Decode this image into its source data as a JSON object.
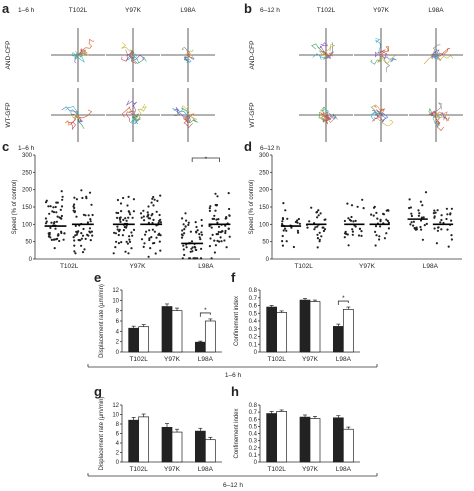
{
  "panels": {
    "a": {
      "letter": "a",
      "time": "1–6 h",
      "cols": [
        "T102L",
        "Y97K",
        "L98A"
      ],
      "rows": [
        "AND-CFP",
        "WT-GFP"
      ]
    },
    "b": {
      "letter": "b",
      "time": "6–12 h",
      "cols": [
        "T102L",
        "Y97K",
        "L98A"
      ],
      "rows": [
        "AND-CFP",
        "WT-GFP"
      ]
    },
    "c": {
      "letter": "c",
      "time": "1–6 h"
    },
    "d": {
      "letter": "d",
      "time": "6–12 h"
    },
    "e": {
      "letter": "e"
    },
    "f": {
      "letter": "f"
    },
    "g": {
      "letter": "g"
    },
    "h": {
      "letter": "h"
    },
    "group1": "1–6 h",
    "group2": "6–12 h"
  },
  "colors": {
    "black_bar": "#222222",
    "white_bar": "#ffffff",
    "axis": "#333333"
  },
  "chart_data": [
    {
      "panel": "c",
      "type": "scatter",
      "ylabel": "Speed (% of control)",
      "ylim": [
        0,
        300
      ],
      "yticks": [
        0,
        50,
        100,
        150,
        200,
        250,
        300
      ],
      "categories": [
        "T102L",
        "Y97K",
        "L98A"
      ],
      "series": [
        {
          "group": "T102L",
          "subset": 1,
          "median": 95
        },
        {
          "group": "T102L",
          "subset": 2,
          "median": 100
        },
        {
          "group": "Y97K",
          "subset": 1,
          "median": 100
        },
        {
          "group": "Y97K",
          "subset": 2,
          "median": 100
        },
        {
          "group": "L98A",
          "subset": 1,
          "median": 45
        },
        {
          "group": "L98A",
          "subset": 2,
          "median": 100
        }
      ],
      "annotations": [
        "*"
      ]
    },
    {
      "panel": "d",
      "type": "scatter",
      "ylabel": "Speed (% of control)",
      "ylim": [
        0,
        300
      ],
      "yticks": [
        0,
        50,
        100,
        150,
        200,
        250,
        300
      ],
      "categories": [
        "T102L",
        "Y97K",
        "L98A"
      ],
      "series": [
        {
          "group": "T102L",
          "subset": 1,
          "median": 95
        },
        {
          "group": "T102L",
          "subset": 2,
          "median": 100
        },
        {
          "group": "Y97K",
          "subset": 1,
          "median": 100
        },
        {
          "group": "Y97K",
          "subset": 2,
          "median": 100
        },
        {
          "group": "L98A",
          "subset": 1,
          "median": 115
        },
        {
          "group": "L98A",
          "subset": 2,
          "median": 100
        }
      ]
    },
    {
      "panel": "e",
      "type": "bar",
      "ylabel": "Displacement rate (µm/min)",
      "ylim": [
        0,
        12
      ],
      "yticks": [
        0,
        2,
        4,
        6,
        8,
        10,
        12
      ],
      "categories": [
        "T102L",
        "Y97K",
        "L98A"
      ],
      "series": [
        {
          "fill": "black",
          "values": [
            4.6,
            8.8,
            1.9
          ],
          "errors": [
            0.4,
            0.5,
            0.2
          ]
        },
        {
          "fill": "white",
          "values": [
            4.9,
            8.0,
            6.0
          ],
          "errors": [
            0.4,
            0.5,
            0.4
          ]
        }
      ],
      "annotations": [
        "*"
      ]
    },
    {
      "panel": "f",
      "type": "bar",
      "ylabel": "Confinement index",
      "ylim": [
        0,
        0.8
      ],
      "yticks": [
        0,
        0.1,
        0.2,
        0.3,
        0.4,
        0.5,
        0.6,
        0.7,
        0.8
      ],
      "categories": [
        "T102L",
        "Y97K",
        "L98A"
      ],
      "series": [
        {
          "fill": "black",
          "values": [
            0.58,
            0.67,
            0.33
          ],
          "errors": [
            0.02,
            0.02,
            0.03
          ]
        },
        {
          "fill": "white",
          "values": [
            0.51,
            0.65,
            0.55
          ],
          "errors": [
            0.02,
            0.02,
            0.03
          ]
        }
      ],
      "annotations": [
        "*"
      ]
    },
    {
      "panel": "g",
      "type": "bar",
      "ylabel": "Displacement rate (µm/min)",
      "ylim": [
        0,
        12
      ],
      "yticks": [
        0,
        2,
        4,
        6,
        8,
        10,
        12
      ],
      "categories": [
        "T102L",
        "Y97K",
        "L98A"
      ],
      "series": [
        {
          "fill": "black",
          "values": [
            8.8,
            7.3,
            6.5
          ],
          "errors": [
            0.6,
            0.8,
            0.6
          ]
        },
        {
          "fill": "white",
          "values": [
            9.5,
            6.3,
            4.7
          ],
          "errors": [
            0.6,
            0.6,
            0.5
          ]
        }
      ]
    },
    {
      "panel": "h",
      "type": "bar",
      "ylabel": "Confinement index",
      "ylim": [
        0,
        0.8
      ],
      "yticks": [
        0,
        0.1,
        0.2,
        0.3,
        0.4,
        0.5,
        0.6,
        0.7,
        0.8
      ],
      "categories": [
        "T102L",
        "Y97K",
        "L98A"
      ],
      "series": [
        {
          "fill": "black",
          "values": [
            0.68,
            0.63,
            0.62
          ],
          "errors": [
            0.03,
            0.03,
            0.03
          ]
        },
        {
          "fill": "white",
          "values": [
            0.71,
            0.61,
            0.46
          ],
          "errors": [
            0.02,
            0.03,
            0.03
          ]
        }
      ]
    }
  ]
}
